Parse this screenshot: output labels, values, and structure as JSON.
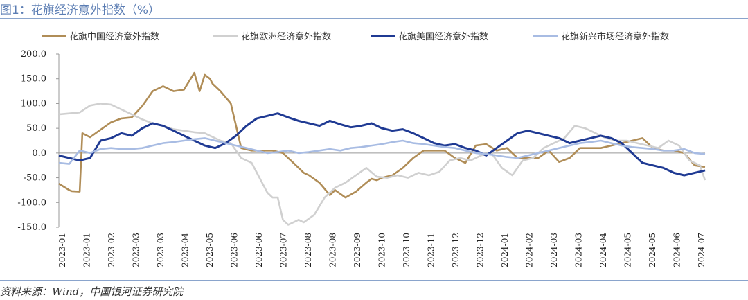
{
  "figure_title": "图1：花旗经济意外指数（%）",
  "source_note": "资料来源：Wind，中国银河证券研究院",
  "chart_data": {
    "type": "line",
    "title": "图1：花旗经济意外指数（%）",
    "xlabel": "",
    "ylabel": "",
    "ylim": [
      -150,
      200
    ],
    "yticks": [
      -150,
      -100,
      -50,
      0,
      50,
      100,
      150,
      200
    ],
    "ytick_labels": [
      "-150.0",
      "-100.0",
      "-50.0",
      "0.0",
      "50.0",
      "100.0",
      "150.0",
      "200.0"
    ],
    "x_tick_labels": [
      "2023-01",
      "2023-01",
      "2023-02",
      "2023-03",
      "2023-03",
      "2023-04",
      "2023-05",
      "2023-06",
      "2023-06",
      "2023-07",
      "2023-08",
      "2023-08",
      "2023-09",
      "2023-10",
      "2023-10",
      "2023-11",
      "2023-12",
      "2023-12",
      "2024-01",
      "2024-02",
      "2024-03",
      "2024-03",
      "2024-04",
      "2024-05",
      "2024-05",
      "2024-06",
      "2024-07"
    ],
    "x_range": [
      0,
      124
    ],
    "legend_position": "top",
    "grid": false,
    "series": [
      {
        "name": "花旗中国经济意外指数",
        "color": "#b08d57",
        "x": [
          0,
          2,
          2.5,
          4,
          4.5,
          6,
          10,
          12,
          14,
          16,
          18,
          20,
          22,
          24,
          26,
          27,
          28,
          29,
          29.5,
          31,
          33,
          35,
          37,
          39.5,
          40,
          41,
          43,
          45,
          47,
          48,
          50,
          52,
          53,
          55,
          57,
          59,
          60,
          61,
          62,
          64,
          66,
          68,
          70,
          72,
          74,
          76,
          78,
          80,
          82,
          84,
          86,
          88,
          90,
          92,
          94,
          96,
          98,
          100,
          102,
          104,
          106,
          108,
          110,
          112,
          114,
          116,
          118,
          120,
          122,
          124
        ],
        "y": [
          -62,
          -75,
          -77,
          -78,
          40,
          32,
          62,
          70,
          72,
          95,
          125,
          135,
          125,
          128,
          162,
          125,
          158,
          150,
          140,
          125,
          100,
          10,
          5,
          5,
          5,
          5,
          0,
          -20,
          -40,
          -45,
          -60,
          -85,
          -75,
          -90,
          -78,
          -60,
          -52,
          -55,
          -50,
          -45,
          -30,
          -10,
          5,
          5,
          5,
          -10,
          -20,
          15,
          18,
          5,
          10,
          -10,
          -10,
          -10,
          5,
          -18,
          -10,
          10,
          10,
          10,
          15,
          20,
          25,
          30,
          10,
          5,
          5,
          0,
          -25,
          -28
        ]
      },
      {
        "name": "花旗欧洲经济意外指数",
        "color": "#d0d0d0",
        "x": [
          0,
          2,
          4,
          6,
          8,
          10,
          12,
          14,
          16,
          18,
          20,
          22,
          24,
          26,
          28,
          29,
          31,
          33,
          35,
          37,
          38,
          39,
          40,
          41,
          42,
          43,
          44,
          45,
          46,
          47,
          49,
          51,
          53,
          55,
          57,
          59,
          61,
          63,
          65,
          67,
          69,
          71,
          73,
          75,
          77,
          79,
          81,
          83,
          85,
          87,
          89,
          91,
          93,
          95,
          97,
          99,
          101,
          103,
          105,
          107,
          109,
          111,
          113,
          115,
          117,
          119,
          121,
          123,
          124
        ],
        "y": [
          78,
          80,
          82,
          96,
          100,
          98,
          88,
          78,
          68,
          60,
          55,
          48,
          45,
          42,
          40,
          35,
          25,
          20,
          -10,
          -20,
          -40,
          -60,
          -80,
          -90,
          -90,
          -135,
          -145,
          -140,
          -135,
          -140,
          -125,
          -90,
          -70,
          -60,
          -45,
          -30,
          -48,
          -50,
          -45,
          -50,
          -40,
          -45,
          -38,
          -15,
          -10,
          -15,
          -5,
          0,
          -30,
          -45,
          -15,
          -10,
          10,
          20,
          30,
          55,
          50,
          40,
          30,
          25,
          25,
          20,
          15,
          10,
          25,
          15,
          -15,
          -25,
          -55
        ]
      },
      {
        "name": "花旗美国经济意外指数",
        "color": "#1f3a93",
        "x": [
          0,
          2,
          4,
          6,
          8,
          10,
          12,
          14,
          16,
          18,
          20,
          22,
          24,
          26,
          28,
          30,
          32,
          34,
          36,
          38,
          40,
          42,
          44,
          46,
          48,
          50,
          52,
          54,
          56,
          58,
          60,
          62,
          64,
          66,
          68,
          70,
          72,
          74,
          76,
          78,
          80,
          82,
          84,
          86,
          88,
          90,
          92,
          94,
          96,
          98,
          100,
          102,
          104,
          106,
          108,
          110,
          112,
          114,
          116,
          118,
          120,
          122,
          124
        ],
        "y": [
          -5,
          -10,
          -15,
          -10,
          25,
          30,
          40,
          35,
          50,
          60,
          55,
          45,
          35,
          25,
          15,
          10,
          20,
          35,
          55,
          70,
          75,
          80,
          72,
          65,
          60,
          55,
          65,
          58,
          52,
          55,
          60,
          50,
          45,
          48,
          40,
          30,
          20,
          15,
          18,
          10,
          5,
          -5,
          10,
          25,
          40,
          45,
          40,
          35,
          30,
          20,
          25,
          30,
          35,
          30,
          20,
          0,
          -20,
          -25,
          -30,
          -40,
          -45,
          -40,
          -35
        ]
      },
      {
        "name": "花旗新兴市场经济意外指数",
        "color": "#a8bce3",
        "x": [
          0,
          2,
          4,
          6,
          8,
          10,
          12,
          14,
          16,
          18,
          20,
          22,
          24,
          26,
          28,
          30,
          32,
          34,
          36,
          38,
          40,
          42,
          44,
          46,
          48,
          50,
          52,
          54,
          56,
          58,
          60,
          62,
          64,
          66,
          68,
          70,
          72,
          74,
          76,
          78,
          80,
          82,
          84,
          86,
          88,
          90,
          92,
          94,
          96,
          98,
          100,
          102,
          104,
          106,
          108,
          110,
          112,
          114,
          116,
          118,
          120,
          122,
          124
        ],
        "y": [
          -20,
          -22,
          5,
          0,
          8,
          10,
          8,
          8,
          10,
          15,
          20,
          22,
          25,
          28,
          30,
          25,
          20,
          15,
          10,
          5,
          0,
          2,
          5,
          0,
          2,
          5,
          8,
          5,
          10,
          12,
          15,
          18,
          22,
          25,
          20,
          18,
          15,
          12,
          10,
          5,
          0,
          -2,
          -5,
          -8,
          -10,
          -5,
          0,
          5,
          10,
          15,
          20,
          22,
          25,
          20,
          15,
          12,
          10,
          8,
          5,
          5,
          8,
          0,
          -2
        ]
      }
    ]
  }
}
